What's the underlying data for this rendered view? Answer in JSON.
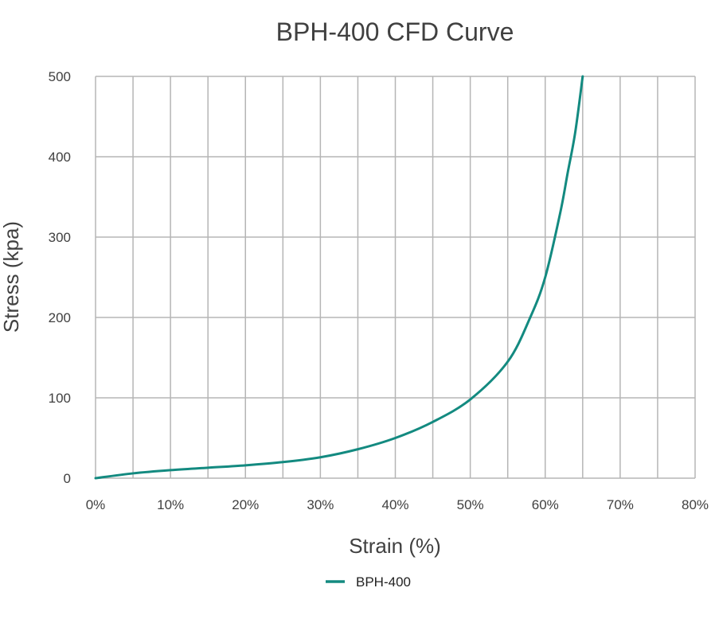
{
  "chart_data": {
    "type": "line",
    "title": "BPH-400 CFD Curve",
    "xlabel": "Strain (%)",
    "ylabel": "Stress (kpa)",
    "xlim": [
      0,
      80
    ],
    "ylim": [
      0,
      500
    ],
    "x_tick_values": [
      0,
      10,
      20,
      30,
      40,
      50,
      60,
      70,
      80
    ],
    "x_tick_labels": [
      "0%",
      "10%",
      "20%",
      "30%",
      "40%",
      "50%",
      "60%",
      "70%",
      "80%"
    ],
    "y_tick_values": [
      0,
      100,
      200,
      300,
      400,
      500
    ],
    "y_tick_labels": [
      "0",
      "100",
      "200",
      "300",
      "400",
      "500"
    ],
    "x_grid_step": 5,
    "y_grid_step": 100,
    "grid": true,
    "legend_position": "bottom-center",
    "series": [
      {
        "name": "BPH-400",
        "color": "#138a80",
        "x": [
          0,
          5,
          10,
          15,
          20,
          25,
          30,
          35,
          40,
          45,
          50,
          55,
          58,
          60,
          62,
          63,
          64,
          65
        ],
        "y": [
          0,
          6,
          10,
          13,
          16,
          20,
          26,
          36,
          50,
          70,
          98,
          145,
          200,
          250,
          330,
          380,
          430,
          500
        ]
      }
    ]
  }
}
